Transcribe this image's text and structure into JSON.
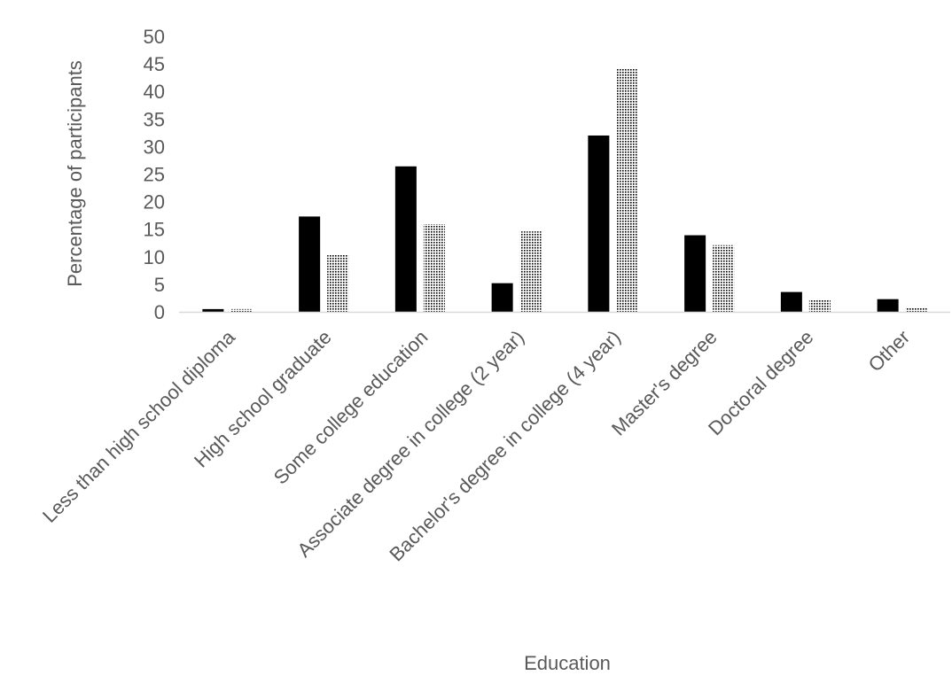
{
  "chart_data": {
    "type": "bar",
    "title": "",
    "xlabel": "Education",
    "ylabel": "Percentage of participants",
    "ylim": [
      0,
      50
    ],
    "yticks": [
      0,
      5,
      10,
      15,
      20,
      25,
      30,
      35,
      40,
      45,
      50
    ],
    "grid": false,
    "legend": "none",
    "categories": [
      "Less than high school diploma",
      "High school graduate",
      "Some college education",
      "Associate degree in college (2 year)",
      "Bachelor's degree in college (4 year)",
      "Master's degree",
      "Doctoral degree",
      "Other"
    ],
    "series": [
      {
        "fill": "solid",
        "color": "#000000",
        "values": [
          0.5,
          17.3,
          26.4,
          5.2,
          32.0,
          13.9,
          3.6,
          2.3
        ]
      },
      {
        "fill": "dotted",
        "color": "#000000",
        "values": [
          0.5,
          10.3,
          15.9,
          14.6,
          44.2,
          12.1,
          2.1,
          0.7
        ]
      }
    ]
  }
}
